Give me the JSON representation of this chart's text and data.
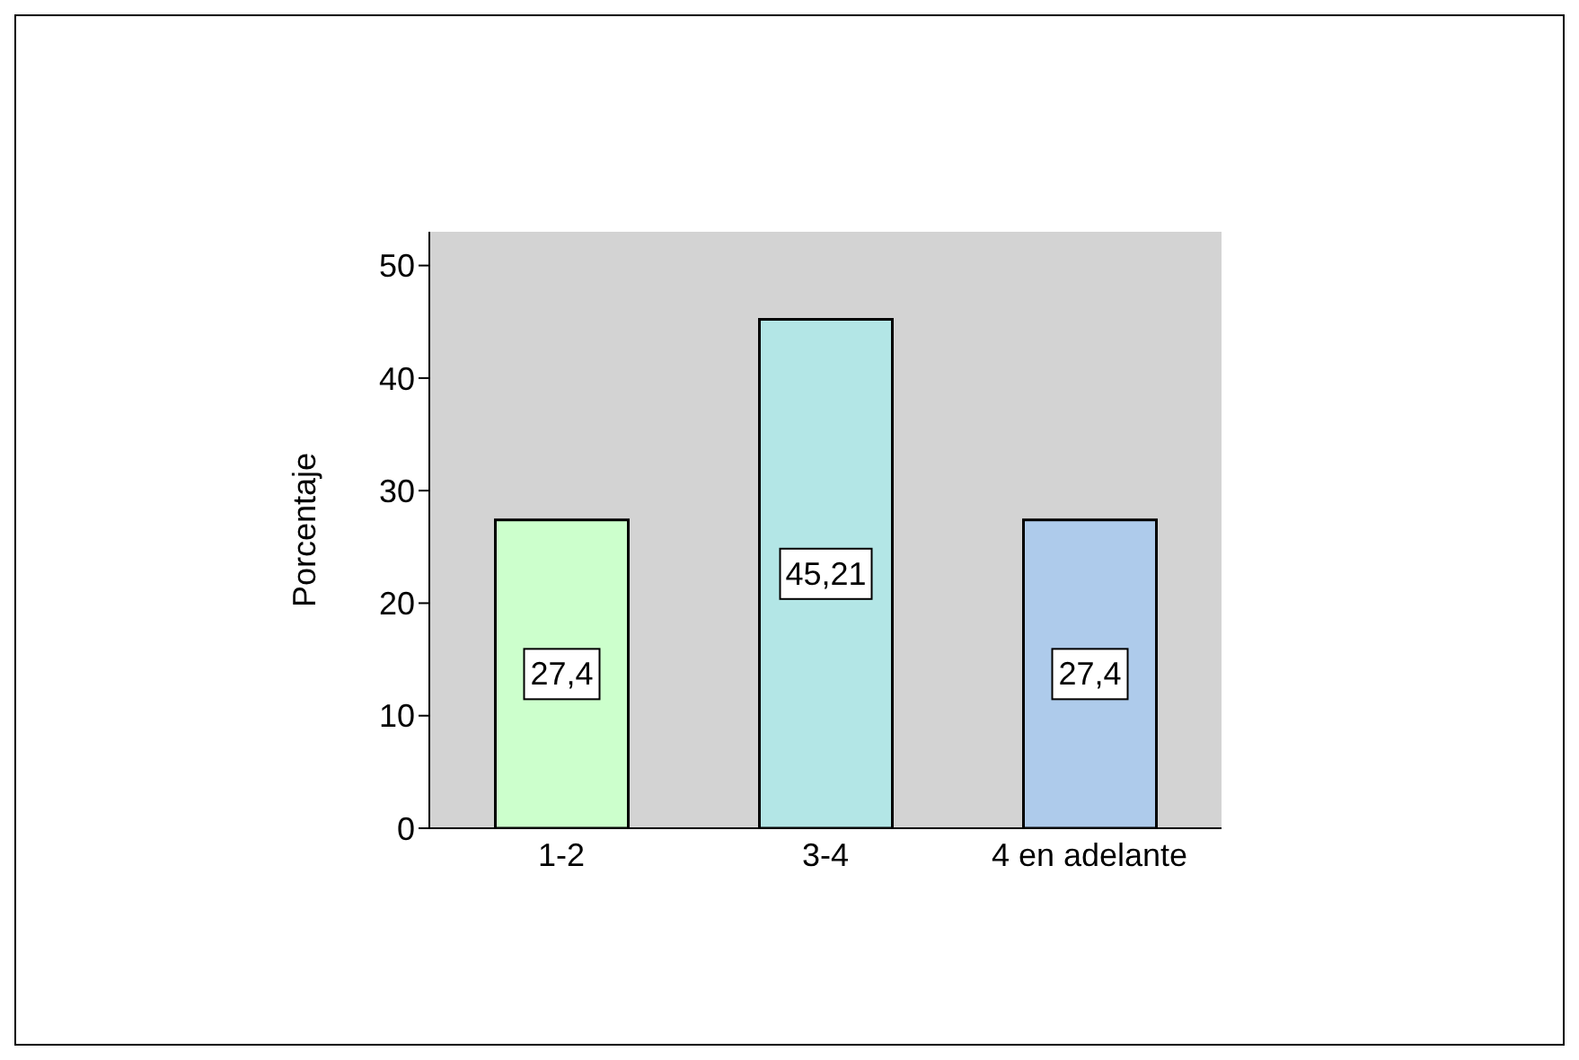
{
  "chart_data": {
    "type": "bar",
    "ylabel": "Porcentaje",
    "categories": [
      "1-2",
      "3-4",
      "4 en adelante"
    ],
    "values": [
      27.4,
      45.21,
      27.4
    ],
    "colors": [
      "#ccffcc",
      "#b3e6e6",
      "#aecbeb"
    ],
    "value_labels": [
      "27,4",
      "45,21",
      "27,4"
    ],
    "ylim": [
      0,
      53
    ],
    "yticks": [
      0,
      10,
      20,
      30,
      40,
      50
    ],
    "grid": false
  }
}
